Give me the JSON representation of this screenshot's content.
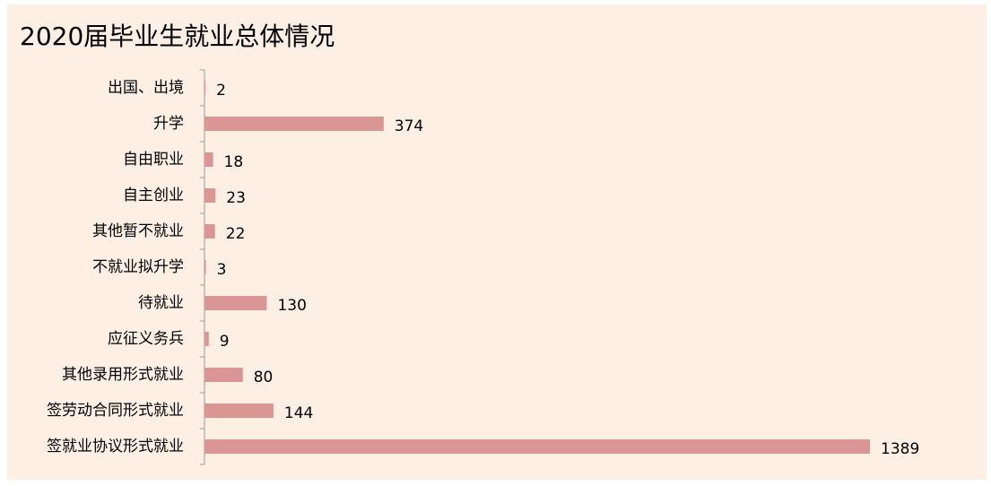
{
  "chart_data": {
    "type": "bar",
    "orientation": "horizontal",
    "title": "2020届毕业生就业总体情况",
    "categories": [
      "出国、出境",
      "升学",
      "自由职业",
      "自主创业",
      "其他暂不就业",
      "不就业拟升学",
      "待就业",
      "应征义务兵",
      "其他录用形式就业",
      "签劳动合同形式就业",
      "签就业协议形式就业"
    ],
    "values": [
      2,
      374,
      18,
      23,
      22,
      3,
      130,
      9,
      80,
      144,
      1389
    ],
    "color": "#d99694"
  }
}
